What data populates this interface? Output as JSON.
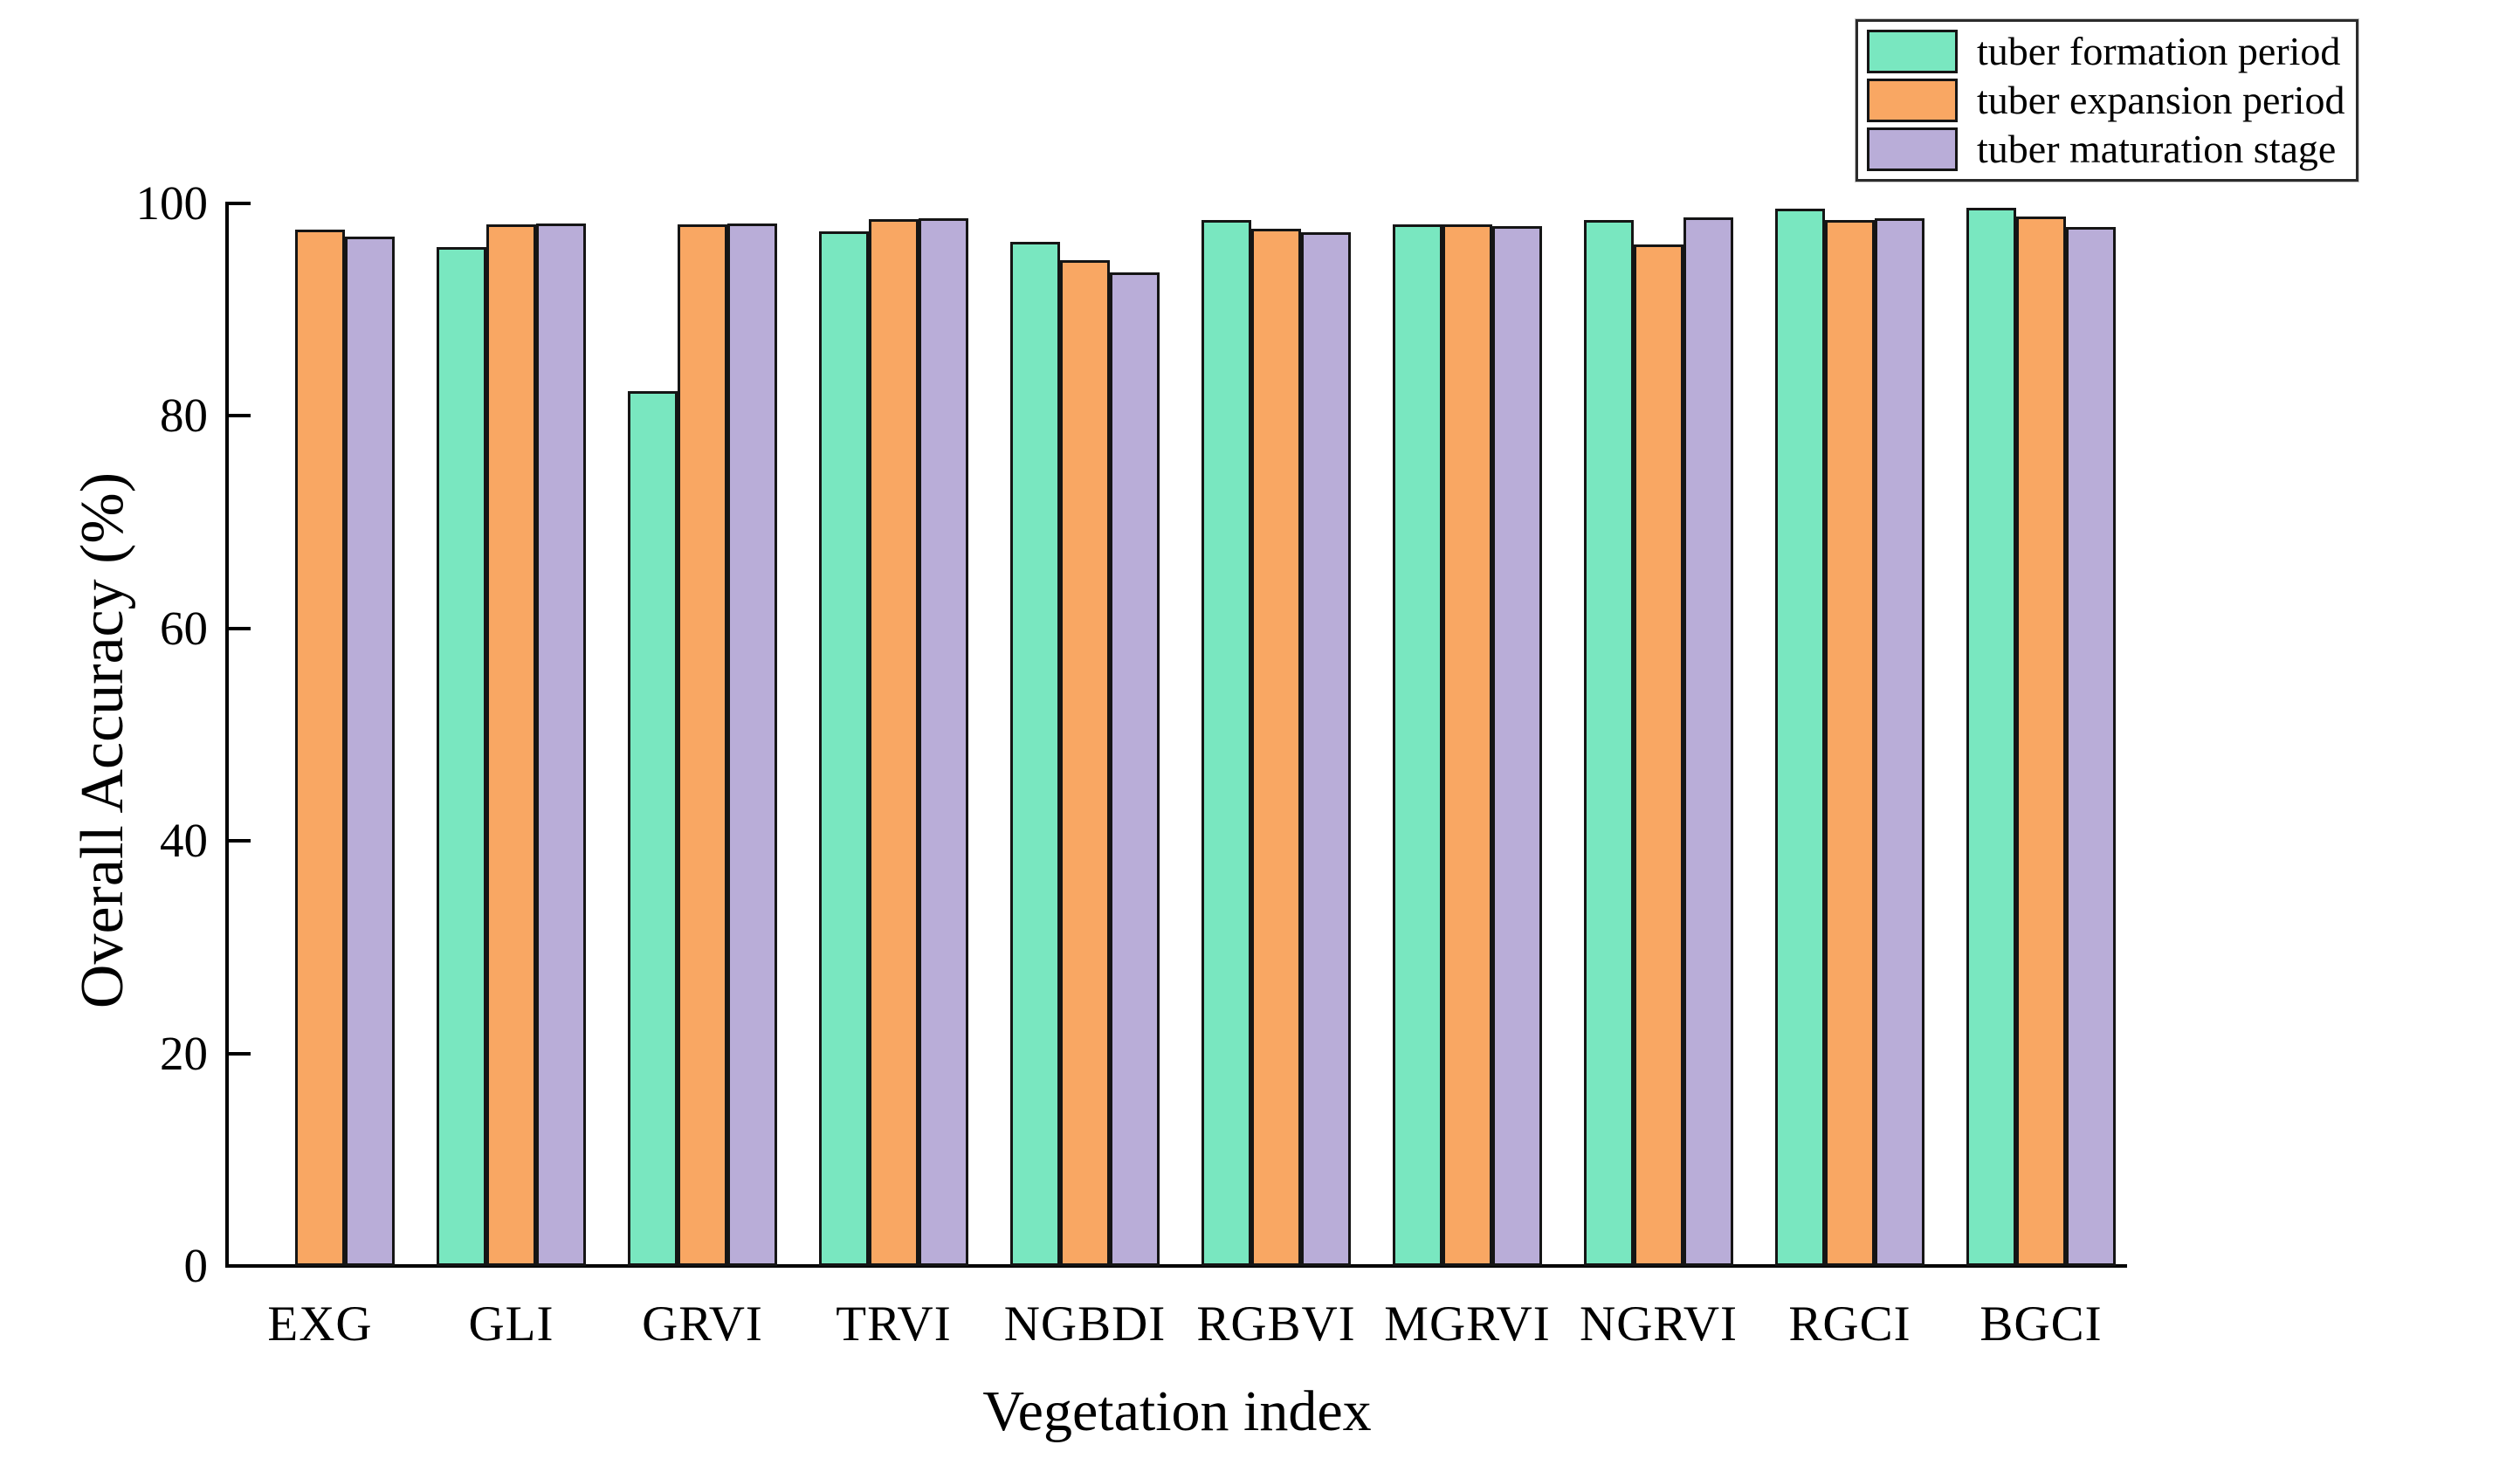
{
  "figure": {
    "background_color": "#ffffff",
    "text_color": "#000000",
    "bar_edge_color": "#151515"
  },
  "chart_data": {
    "type": "bar",
    "title": "",
    "xlabel": "Vegetation index",
    "ylabel": "Overall Accuracy (%)",
    "ylim": [
      0,
      100
    ],
    "yticks": [
      0,
      20,
      40,
      60,
      80,
      100
    ],
    "grid": false,
    "legend_position": "top-right",
    "categories": [
      "EXG",
      "GLI",
      "GRVI",
      "TRVI",
      "NGBDI",
      "RGBVI",
      "MGRVI",
      "NGRVI",
      "RGCI",
      "BGCI"
    ],
    "series": [
      {
        "name": "tuber formation period",
        "color": "#79e7c0",
        "values": [
          0,
          95.9,
          82.3,
          97.4,
          96.4,
          98.4,
          98.0,
          98.4,
          99.5,
          99.6
        ]
      },
      {
        "name": "tuber expansion period",
        "color": "#f9a763",
        "values": [
          97.5,
          98.0,
          98.0,
          98.5,
          94.7,
          97.6,
          98.0,
          96.1,
          98.4,
          98.8
        ]
      },
      {
        "name": "tuber maturation stage",
        "color": "#b9add8",
        "values": [
          96.9,
          98.1,
          98.1,
          98.6,
          93.5,
          97.3,
          97.9,
          98.7,
          98.6,
          97.8
        ]
      }
    ]
  }
}
